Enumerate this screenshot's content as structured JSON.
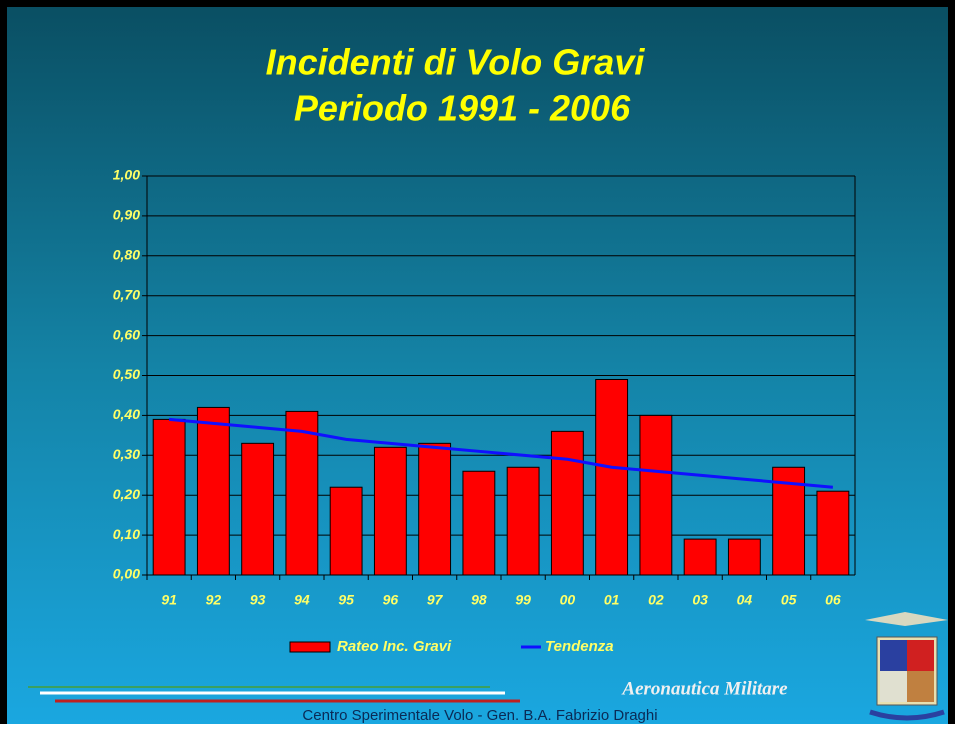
{
  "chart_data": {
    "type": "bar",
    "title": "Incidenti di Volo Gravi",
    "subtitle": "Periodo 1991 - 2006",
    "categories": [
      "91",
      "92",
      "93",
      "94",
      "95",
      "96",
      "97",
      "98",
      "99",
      "00",
      "01",
      "02",
      "03",
      "04",
      "05",
      "06"
    ],
    "series": [
      {
        "name": "Rateo Inc. Gravi",
        "color": "#ff0000",
        "type": "bar",
        "values": [
          0.39,
          0.42,
          0.33,
          0.41,
          0.22,
          0.32,
          0.33,
          0.26,
          0.27,
          0.36,
          0.49,
          0.4,
          0.09,
          0.09,
          0.27,
          0.21
        ]
      },
      {
        "name": "Tendenza",
        "color": "#1010ff",
        "type": "line",
        "values": [
          0.39,
          0.38,
          0.37,
          0.36,
          0.34,
          0.33,
          0.32,
          0.31,
          0.3,
          0.29,
          0.27,
          0.26,
          0.25,
          0.24,
          0.23,
          0.22
        ]
      }
    ],
    "ylim": [
      0,
      1
    ],
    "yticks": [
      {
        "value": 0,
        "label": "0,00"
      },
      {
        "value": 0.1,
        "label": "0,10"
      },
      {
        "value": 0.2,
        "label": "0,20"
      },
      {
        "value": 0.3,
        "label": "0,30"
      },
      {
        "value": 0.4,
        "label": "0,40"
      },
      {
        "value": 0.5,
        "label": "0,50"
      },
      {
        "value": 0.6,
        "label": "0,60"
      },
      {
        "value": 0.7,
        "label": "0,70"
      },
      {
        "value": 0.8,
        "label": "0,80"
      },
      {
        "value": 0.9,
        "label": "0,90"
      },
      {
        "value": 1,
        "label": "1,00"
      }
    ],
    "grid": true,
    "legend": "bottom"
  },
  "footer": {
    "organization": "Aeronautica Militare",
    "credit": "Centro Sperimentale Volo - Gen. B.A. Fabrizio Draghi"
  }
}
